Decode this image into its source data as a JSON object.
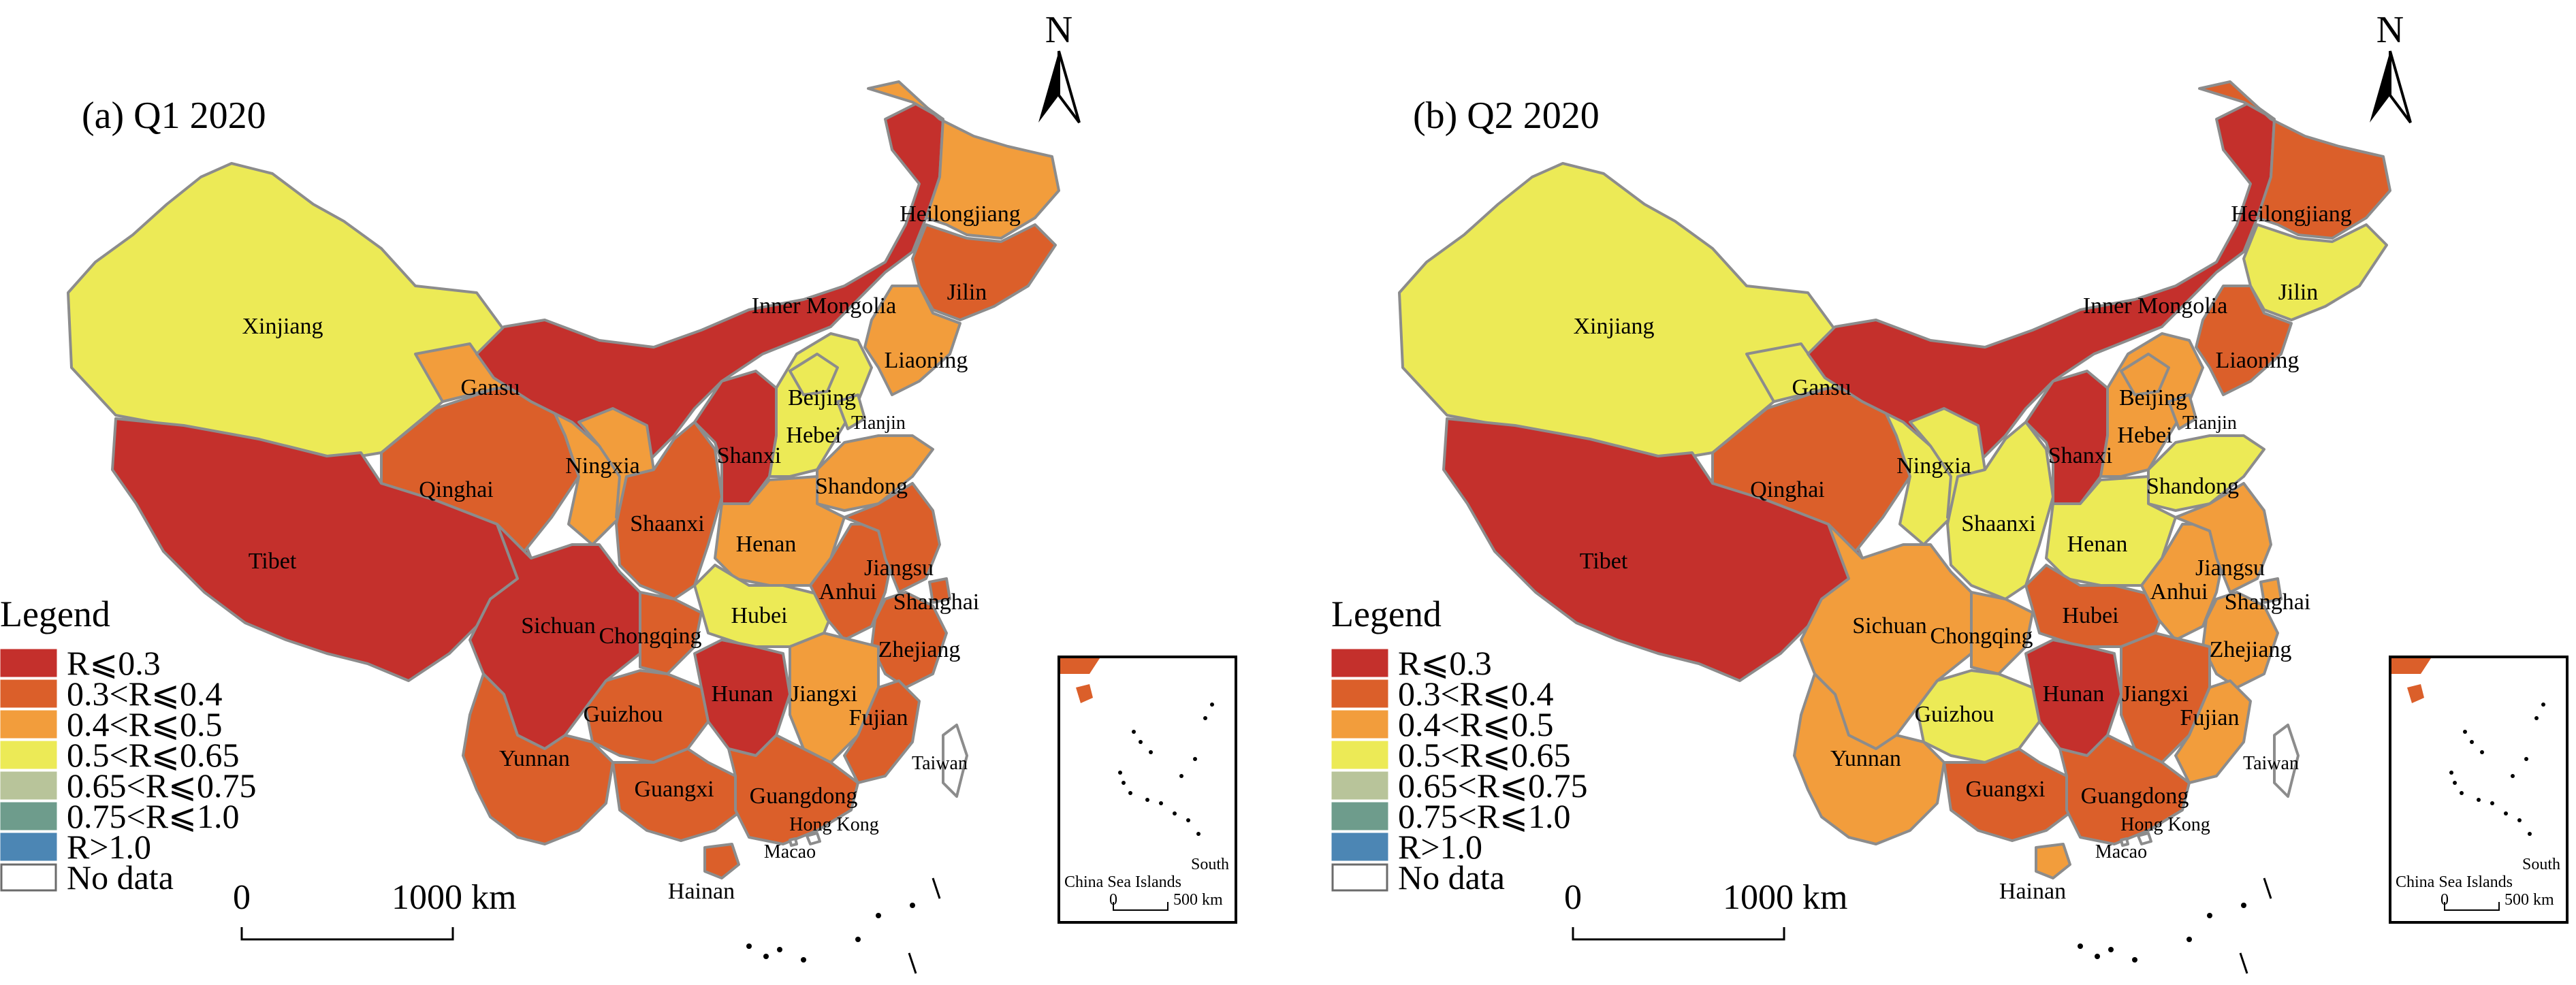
{
  "colors": {
    "r1": "#c4302c",
    "r2": "#db5f2a",
    "r3": "#f29d3c",
    "r4": "#ecea56",
    "r5": "#b8c49a",
    "r6": "#6e9c8c",
    "r7": "#4c86b4",
    "nodata": "#ffffff",
    "border": "#8c8c8c",
    "ocean_island": "#000000"
  },
  "panels": [
    {
      "title": "(a) Q1 2020",
      "legend_title": "Legend",
      "legend_items": [
        {
          "color_key": "r1",
          "label": "R⩽0.3"
        },
        {
          "color_key": "r2",
          "label": "0.3<R⩽0.4"
        },
        {
          "color_key": "r3",
          "label": "0.4<R⩽0.5"
        },
        {
          "color_key": "r4",
          "label": "0.5<R⩽0.65"
        },
        {
          "color_key": "r5",
          "label": "0.65<R⩽0.75"
        },
        {
          "color_key": "r6",
          "label": "0.75<R⩽1.0"
        },
        {
          "color_key": "r7",
          "label": "R>1.0"
        },
        {
          "color_key": "nodata",
          "label": "No data"
        }
      ],
      "scale": {
        "start": "0",
        "end": "1000 km"
      },
      "north": "N",
      "inset": {
        "line1": "South",
        "line2": "China Sea Islands",
        "scale_start": "0",
        "scale_end": "500 km"
      },
      "regions": [
        {
          "name": "Xinjiang",
          "class": "r4"
        },
        {
          "name": "Tibet",
          "class": "r1"
        },
        {
          "name": "Qinghai",
          "class": "r2"
        },
        {
          "name": "Gansu",
          "class": "r3"
        },
        {
          "name": "Inner Mongolia",
          "class": "r1"
        },
        {
          "name": "Heilongjiang",
          "class": "r3"
        },
        {
          "name": "Jilin",
          "class": "r2"
        },
        {
          "name": "Liaoning",
          "class": "r3"
        },
        {
          "name": "Ningxia",
          "class": "r3"
        },
        {
          "name": "Shaanxi",
          "class": "r2"
        },
        {
          "name": "Shanxi",
          "class": "r1"
        },
        {
          "name": "Hebei",
          "class": "r4"
        },
        {
          "name": "Beijing",
          "class": "r4"
        },
        {
          "name": "Tianjin",
          "class": "r4"
        },
        {
          "name": "Shandong",
          "class": "r3"
        },
        {
          "name": "Henan",
          "class": "r3"
        },
        {
          "name": "Sichuan",
          "class": "r1"
        },
        {
          "name": "Chongqing",
          "class": "r2"
        },
        {
          "name": "Hubei",
          "class": "r4"
        },
        {
          "name": "Anhui",
          "class": "r2"
        },
        {
          "name": "Jiangsu",
          "class": "r2"
        },
        {
          "name": "Shanghai",
          "class": "r2"
        },
        {
          "name": "Zhejiang",
          "class": "r2"
        },
        {
          "name": "Hunan",
          "class": "r1"
        },
        {
          "name": "Jiangxi",
          "class": "r3"
        },
        {
          "name": "Fujian",
          "class": "r2"
        },
        {
          "name": "Guizhou",
          "class": "r2"
        },
        {
          "name": "Yunnan",
          "class": "r2"
        },
        {
          "name": "Guangxi",
          "class": "r2"
        },
        {
          "name": "Guangdong",
          "class": "r2"
        },
        {
          "name": "Hainan",
          "class": "r2"
        },
        {
          "name": "Taiwan",
          "class": "nodata"
        },
        {
          "name": "Hong Kong",
          "class": "nodata"
        },
        {
          "name": "Macao",
          "class": "nodata"
        }
      ]
    },
    {
      "title": "(b) Q2 2020",
      "legend_title": "Legend",
      "legend_items": [
        {
          "color_key": "r1",
          "label": "R⩽0.3"
        },
        {
          "color_key": "r2",
          "label": "0.3<R⩽0.4"
        },
        {
          "color_key": "r3",
          "label": "0.4<R⩽0.5"
        },
        {
          "color_key": "r4",
          "label": "0.5<R⩽0.65"
        },
        {
          "color_key": "r5",
          "label": "0.65<R⩽0.75"
        },
        {
          "color_key": "r6",
          "label": "0.75<R⩽1.0"
        },
        {
          "color_key": "r7",
          "label": "R>1.0"
        },
        {
          "color_key": "nodata",
          "label": "No data"
        }
      ],
      "scale": {
        "start": "0",
        "end": "1000 km"
      },
      "north": "N",
      "inset": {
        "line1": "South",
        "line2": "China Sea Islands",
        "scale_start": "0",
        "scale_end": "500 km"
      },
      "regions": [
        {
          "name": "Xinjiang",
          "class": "r4"
        },
        {
          "name": "Tibet",
          "class": "r1"
        },
        {
          "name": "Qinghai",
          "class": "r2"
        },
        {
          "name": "Gansu",
          "class": "r4"
        },
        {
          "name": "Inner Mongolia",
          "class": "r1"
        },
        {
          "name": "Heilongjiang",
          "class": "r2"
        },
        {
          "name": "Jilin",
          "class": "r4"
        },
        {
          "name": "Liaoning",
          "class": "r2"
        },
        {
          "name": "Ningxia",
          "class": "r4"
        },
        {
          "name": "Shaanxi",
          "class": "r4"
        },
        {
          "name": "Shanxi",
          "class": "r1"
        },
        {
          "name": "Hebei",
          "class": "r3"
        },
        {
          "name": "Beijing",
          "class": "r3"
        },
        {
          "name": "Tianjin",
          "class": "r3"
        },
        {
          "name": "Shandong",
          "class": "r4"
        },
        {
          "name": "Henan",
          "class": "r4"
        },
        {
          "name": "Sichuan",
          "class": "r3"
        },
        {
          "name": "Chongqing",
          "class": "r3"
        },
        {
          "name": "Hubei",
          "class": "r2"
        },
        {
          "name": "Anhui",
          "class": "r3"
        },
        {
          "name": "Jiangsu",
          "class": "r3"
        },
        {
          "name": "Shanghai",
          "class": "r3"
        },
        {
          "name": "Zhejiang",
          "class": "r3"
        },
        {
          "name": "Hunan",
          "class": "r1"
        },
        {
          "name": "Jiangxi",
          "class": "r2"
        },
        {
          "name": "Fujian",
          "class": "r3"
        },
        {
          "name": "Guizhou",
          "class": "r4"
        },
        {
          "name": "Yunnan",
          "class": "r3"
        },
        {
          "name": "Guangxi",
          "class": "r2"
        },
        {
          "name": "Guangdong",
          "class": "r2"
        },
        {
          "name": "Hainan",
          "class": "r3"
        },
        {
          "name": "Taiwan",
          "class": "nodata"
        },
        {
          "name": "Hong Kong",
          "class": "nodata"
        },
        {
          "name": "Macao",
          "class": "nodata"
        }
      ]
    }
  ]
}
